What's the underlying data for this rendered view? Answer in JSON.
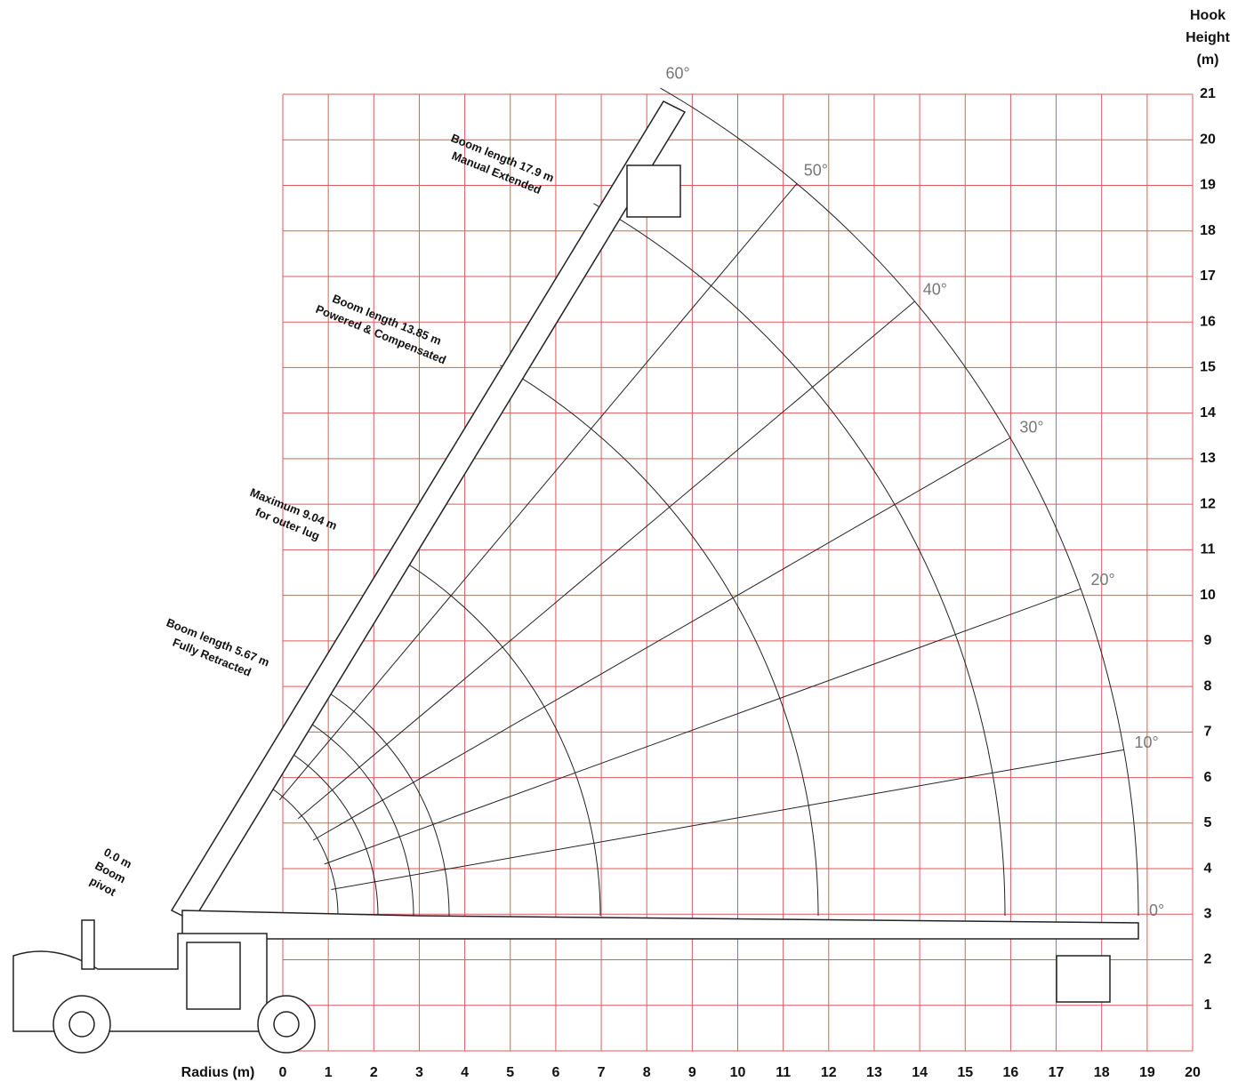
{
  "chart_data": {
    "type": "range",
    "x_label": "Radius (m)",
    "y_label": [
      "Hook",
      "Height",
      "(m)"
    ],
    "xlim": [
      0,
      20
    ],
    "ylim": [
      0,
      21
    ],
    "xticks": [
      0,
      1,
      2,
      3,
      4,
      5,
      6,
      7,
      8,
      9,
      10,
      11,
      12,
      13,
      14,
      15,
      16,
      17,
      18,
      19,
      20
    ],
    "yticks": [
      1,
      2,
      3,
      4,
      5,
      6,
      7,
      8,
      9,
      10,
      11,
      12,
      13,
      14,
      15,
      16,
      17,
      18,
      19,
      20,
      21
    ],
    "grid": true,
    "grid_color": "#e05a5a",
    "angles": [
      {
        "value": 0,
        "label": "0°"
      },
      {
        "value": 10,
        "label": "10°"
      },
      {
        "value": 20,
        "label": "20°"
      },
      {
        "value": 30,
        "label": "30°"
      },
      {
        "value": 40,
        "label": "40°"
      },
      {
        "value": 50,
        "label": "50°"
      },
      {
        "value": 60,
        "label": "60°"
      }
    ],
    "annotations": [
      {
        "lines": [
          "Boom length 17.9 m",
          "Manual Extended"
        ]
      },
      {
        "lines": [
          "Boom length 13.85 m",
          "Powered & Compensated"
        ]
      },
      {
        "lines": [
          "Maximum 9.04 m",
          "for outer lug"
        ]
      },
      {
        "lines": [
          "Boom length 5.67 m",
          "Fully Retracted"
        ]
      },
      {
        "lines": [
          "0.0 m",
          "Boom",
          "pivot"
        ]
      }
    ]
  }
}
